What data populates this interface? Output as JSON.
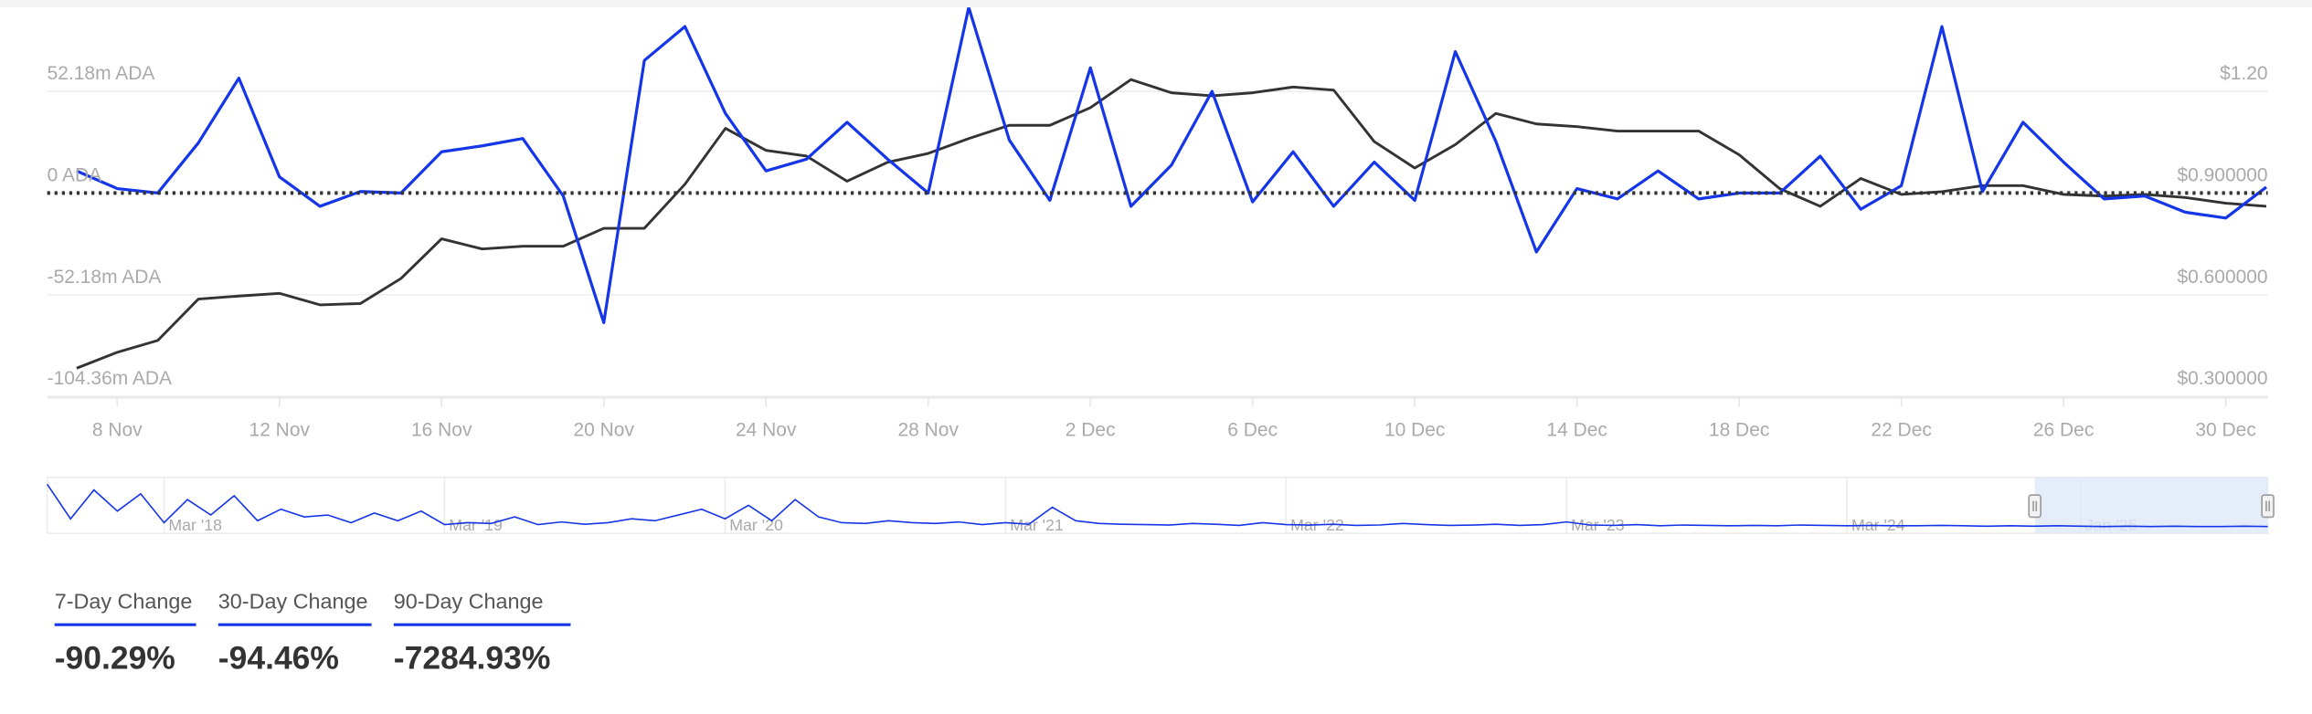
{
  "chart_data": {
    "type": "line",
    "categories": [
      null,
      "8 Nov",
      null,
      null,
      null,
      "12 Nov",
      null,
      null,
      null,
      "16 Nov",
      null,
      null,
      null,
      "20 Nov",
      null,
      null,
      null,
      "24 Nov",
      null,
      null,
      null,
      "28 Nov",
      null,
      null,
      null,
      "2 Dec",
      null,
      null,
      null,
      "6 Dec",
      null,
      null,
      null,
      "10 Dec",
      null,
      null,
      null,
      "14 Dec",
      null,
      null,
      null,
      "18 Dec",
      null,
      null,
      null,
      "22 Dec",
      null,
      null,
      null,
      "26 Dec",
      null,
      null,
      null,
      "30 Dec",
      null
    ],
    "series": [
      {
        "color": "#1536e8",
        "values": [
          11.34,
          2.27,
          0,
          25.71,
          58.98,
          8.32,
          -6.81,
          0.76,
          0,
          21.17,
          24.2,
          27.98,
          -1.51,
          -66.55,
          68.06,
          85.45,
          40.83,
          11.34,
          17.39,
          36.3,
          17.39,
          0,
          95.28,
          27.22,
          -3.78,
          64.28,
          -6.81,
          14.37,
          52.18,
          -4.54,
          21.17,
          -6.81,
          15.88,
          -3.78,
          72.6,
          26.47,
          -30.25,
          2.27,
          -3.02,
          11.34,
          -3.02,
          0,
          0,
          18.9,
          -8.32,
          3.78,
          85.45,
          0.76,
          36.3,
          15.88,
          -3.02,
          -1.51,
          -9.83,
          -12.85,
          3.02
        ]
      },
      {
        "color": "#333333",
        "axis": "y2",
        "values": [
          0.383,
          0.43,
          0.465,
          0.587,
          0.596,
          0.604,
          0.57,
          0.574,
          0.648,
          0.765,
          0.735,
          0.743,
          0.743,
          0.796,
          0.796,
          0.926,
          1.091,
          1.026,
          1.009,
          0.935,
          0.991,
          1.017,
          1.061,
          1.1,
          1.1,
          1.152,
          1.235,
          1.196,
          1.187,
          1.196,
          1.213,
          1.204,
          1.052,
          0.974,
          1.043,
          1.135,
          1.104,
          1.096,
          1.083,
          1.083,
          1.083,
          1.013,
          0.913,
          0.861,
          0.943,
          0.896,
          0.904,
          0.922,
          0.922,
          0.896,
          0.891,
          0.896,
          0.887,
          0.87,
          0.861
        ]
      }
    ],
    "ylim": [
      -104.36,
      95.28
    ],
    "yticks": [
      {
        "value": -104.36,
        "label": "-104.36m ADA"
      },
      {
        "value": -52.18,
        "label": "-52.18m ADA"
      },
      {
        "value": 0,
        "label": "0 ADA"
      },
      {
        "value": 52.18,
        "label": "52.18m ADA"
      }
    ],
    "y2lim": [
      0.3,
      1.448
    ],
    "y2ticks": [
      {
        "value": 0.3,
        "label": "$0.300000"
      },
      {
        "value": 0.6,
        "label": "$0.600000"
      },
      {
        "value": 0.9,
        "label": "$0.900000"
      },
      {
        "value": 1.2,
        "label": "$1.20"
      }
    ],
    "grid": true
  },
  "navigator": {
    "categories": [
      null,
      null,
      null,
      null,
      null,
      "Mar '18",
      null,
      null,
      null,
      null,
      null,
      null,
      null,
      null,
      null,
      null,
      null,
      "Mar '19",
      null,
      null,
      null,
      null,
      null,
      null,
      null,
      null,
      null,
      null,
      null,
      "Mar '20",
      null,
      null,
      null,
      null,
      null,
      null,
      null,
      null,
      null,
      null,
      null,
      "Mar '21",
      null,
      null,
      null,
      null,
      null,
      null,
      null,
      null,
      null,
      null,
      null,
      "Mar '22",
      null,
      null,
      null,
      null,
      null,
      null,
      null,
      null,
      null,
      null,
      null,
      "Mar '23",
      null,
      null,
      null,
      null,
      null,
      null,
      null,
      null,
      null,
      null,
      null,
      "Mar '24",
      null,
      null,
      null,
      null,
      null,
      null,
      null,
      null,
      null,
      "Jan '25",
      null,
      null,
      null,
      null,
      null,
      null,
      null,
      null
    ],
    "values": [
      110,
      20,
      95,
      40,
      85,
      10,
      70,
      30,
      80,
      15,
      45,
      25,
      30,
      10,
      35,
      15,
      40,
      5,
      10,
      8,
      25,
      5,
      12,
      6,
      10,
      20,
      15,
      30,
      45,
      20,
      55,
      15,
      70,
      25,
      10,
      8,
      15,
      10,
      8,
      12,
      5,
      10,
      6,
      50,
      15,
      8,
      6,
      5,
      4,
      8,
      6,
      3,
      10,
      5,
      4,
      6,
      3,
      4,
      8,
      5,
      3,
      4,
      6,
      3,
      5,
      12,
      4,
      3,
      5,
      2,
      4,
      3,
      2,
      3,
      2,
      4,
      3,
      2,
      3,
      2,
      2,
      3,
      2,
      1,
      2,
      1,
      2,
      1,
      0,
      1,
      0,
      1,
      0,
      0,
      1,
      0
    ],
    "ylim": [
      -10,
      120
    ],
    "color": "#1536e8"
  },
  "stats": [
    {
      "label": "7-Day Change",
      "value": "-90.29%"
    },
    {
      "label": "30-Day Change",
      "value": "-94.46%"
    },
    {
      "label": "90-Day Change",
      "value": "-7284.93%"
    }
  ]
}
